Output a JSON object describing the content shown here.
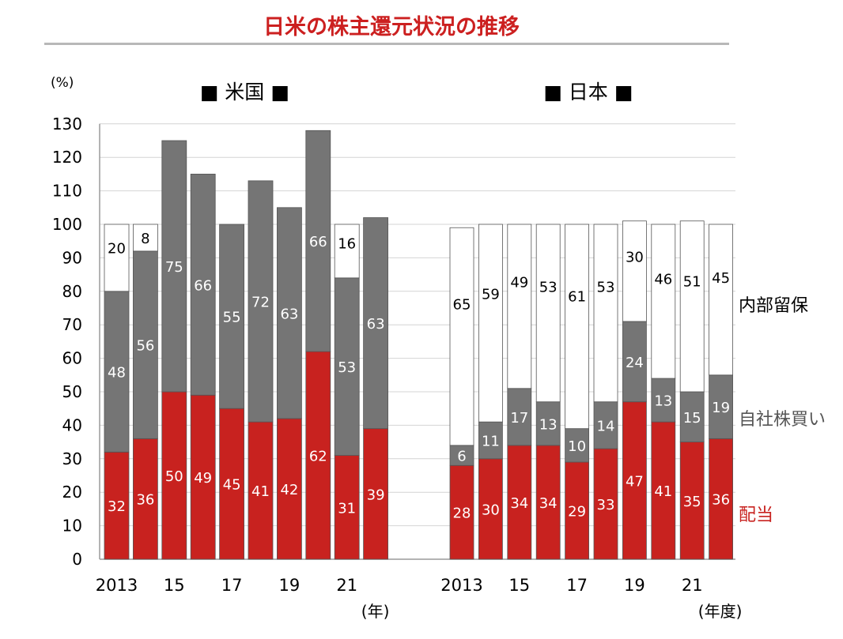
{
  "title": "日米の株主還元状況の推移",
  "colors": {
    "title": "#cc2020",
    "dividend": "#c8221f",
    "buyback": "#757575",
    "retained": "#ffffff",
    "outline": "#555555"
  },
  "chart_data": {
    "type": "bar",
    "stacked": true,
    "title": "日米の株主還元状況の推移",
    "y_unit_label": "(%)",
    "ylim": [
      0,
      130
    ],
    "yticks": [
      0,
      10,
      20,
      30,
      40,
      50,
      60,
      70,
      80,
      90,
      100,
      110,
      120,
      130
    ],
    "grid": true,
    "legend_labels": [
      {
        "text": "内部留保",
        "series": "retained"
      },
      {
        "text": "自社株買い",
        "series": "buyback"
      },
      {
        "text": "配当",
        "series": "dividend"
      }
    ],
    "panels": [
      {
        "header": "■ 米国 ■",
        "categories": [
          "2013",
          "2014",
          "2015",
          "2016",
          "2017",
          "2018",
          "2019",
          "2020",
          "2021",
          "2022"
        ],
        "tick_labels": [
          "2013",
          "",
          "15",
          "",
          "17",
          "",
          "19",
          "",
          "21",
          ""
        ],
        "x_unit_label": "(年)",
        "series": [
          {
            "key": "dividend",
            "values": [
              32,
              36,
              50,
              49,
              45,
              41,
              42,
              62,
              31,
              39
            ]
          },
          {
            "key": "buyback",
            "values": [
              48,
              56,
              75,
              66,
              55,
              72,
              63,
              66,
              53,
              63
            ]
          },
          {
            "key": "retained",
            "values": [
              20,
              8,
              null,
              null,
              null,
              null,
              null,
              null,
              16,
              null
            ]
          }
        ]
      },
      {
        "header": "■ 日本 ■",
        "categories": [
          "2013",
          "2014",
          "2015",
          "2016",
          "2017",
          "2018",
          "2019",
          "2020",
          "2021",
          "2022"
        ],
        "tick_labels": [
          "2013",
          "",
          "15",
          "",
          "17",
          "",
          "19",
          "",
          "21",
          ""
        ],
        "x_unit_label": "(年度)",
        "series": [
          {
            "key": "dividend",
            "values": [
              28,
              30,
              34,
              34,
              29,
              33,
              47,
              41,
              35,
              36
            ]
          },
          {
            "key": "buyback",
            "values": [
              6,
              11,
              17,
              13,
              10,
              14,
              24,
              13,
              15,
              19
            ]
          },
          {
            "key": "retained",
            "values": [
              65,
              59,
              49,
              53,
              61,
              53,
              30,
              46,
              51,
              45
            ]
          }
        ]
      }
    ]
  }
}
